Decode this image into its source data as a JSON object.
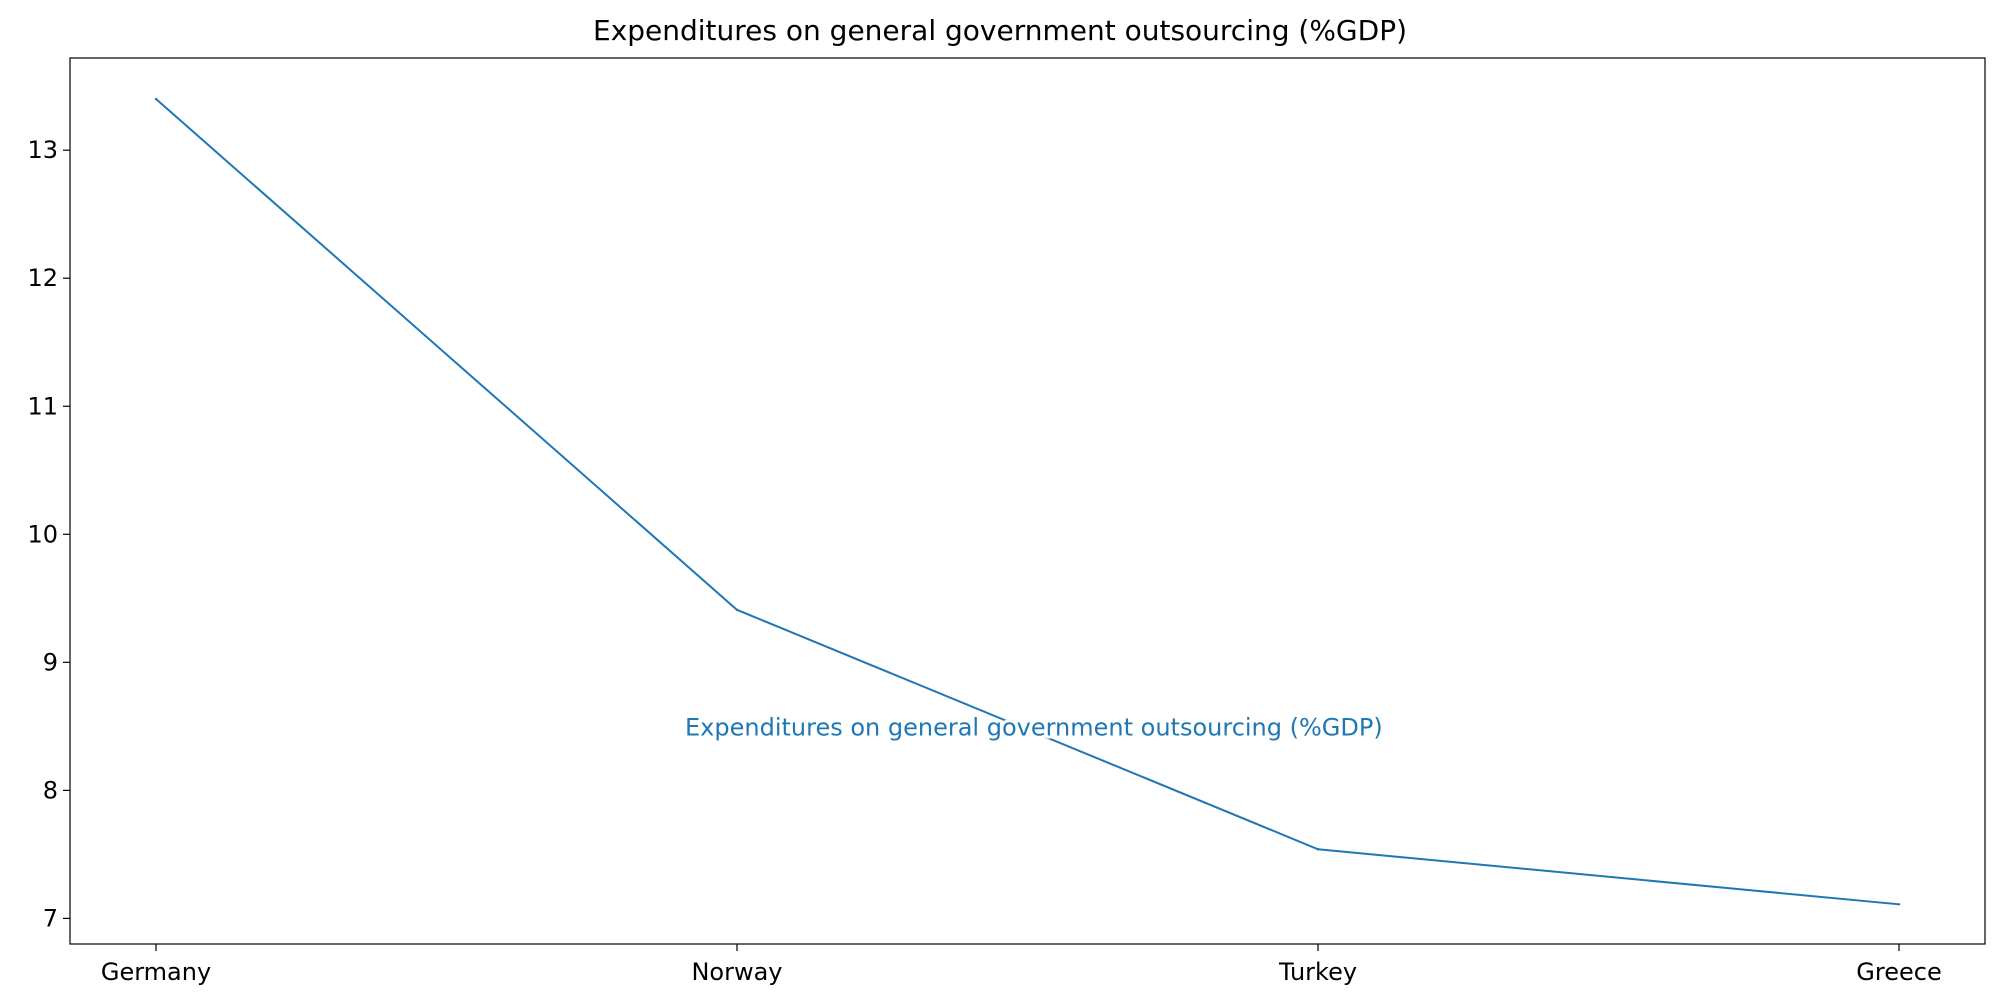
{
  "chart_data": {
    "type": "line",
    "title": "Expenditures on general government outsourcing (%GDP)",
    "xlabel": "",
    "ylabel": "",
    "categories": [
      "Germany",
      "Norway",
      "Turkey",
      "Greece"
    ],
    "series": [
      {
        "name": "Expenditures on general government outsourcing (%GDP)",
        "values": [
          13.4,
          9.41,
          7.54,
          7.11
        ],
        "color": "#1f77b4"
      }
    ],
    "ylim": [
      6.8,
      13.72
    ],
    "yticks": [
      7,
      8,
      9,
      10,
      11,
      12,
      13
    ],
    "grid": false,
    "legend": "none",
    "annotation": {
      "text": "Expenditures on general government outsourcing (%GDP)",
      "anchor_category": "Norway",
      "anchor_value": 8.49
    }
  }
}
